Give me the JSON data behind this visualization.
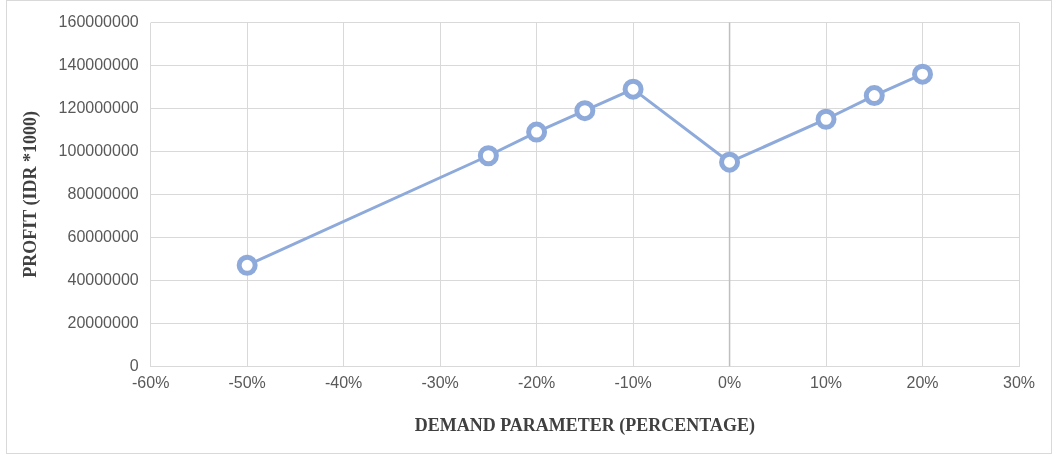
{
  "chart_data": {
    "type": "line",
    "xlabel": "DEMAND PARAMETER (PERCENTAGE)",
    "ylabel": "PROFIT (IDR *1000)",
    "x": [
      -50,
      -25,
      -20,
      -15,
      -10,
      0,
      10,
      15,
      20
    ],
    "series": [
      {
        "color": "#8eaadb",
        "values": [
          47000000,
          98000000,
          109000000,
          119000000,
          129000000,
          95000000,
          115000000,
          126000000,
          136000000
        ]
      }
    ],
    "xlim": [
      -60,
      30
    ],
    "xticks": [
      {
        "value": -60,
        "label": "-60%"
      },
      {
        "value": -50,
        "label": "-50%"
      },
      {
        "value": -40,
        "label": "-40%"
      },
      {
        "value": -30,
        "label": "-30%"
      },
      {
        "value": -20,
        "label": "-20%"
      },
      {
        "value": -10,
        "label": "-10%"
      },
      {
        "value": 0,
        "label": "0%"
      },
      {
        "value": 10,
        "label": "10%"
      },
      {
        "value": 20,
        "label": "20%"
      },
      {
        "value": 30,
        "label": "30%"
      }
    ],
    "ylim": [
      0,
      160000000
    ],
    "yticks": [
      0,
      20000000,
      40000000,
      60000000,
      80000000,
      100000000,
      120000000,
      140000000,
      160000000
    ],
    "ref_lines": [
      {
        "axis": "x",
        "value": 0,
        "color": "#bfbfbf"
      }
    ],
    "grid": true,
    "legend": false,
    "marker": "circle",
    "line_style": "solid"
  }
}
